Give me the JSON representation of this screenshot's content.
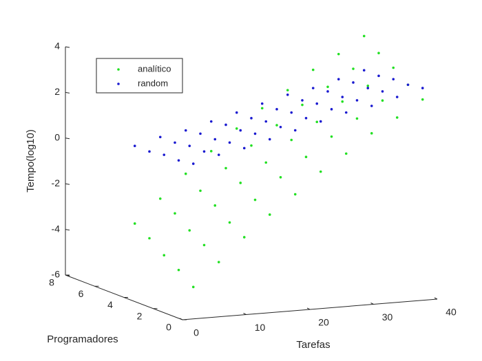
{
  "chart_data": {
    "type": "scatter3d",
    "xlabel": "Tarefas",
    "ylabel": "Programadores",
    "zlabel": "Tempo(log10)",
    "xlim": [
      0,
      40
    ],
    "xticks": [
      0,
      10,
      20,
      30,
      40
    ],
    "ylim": [
      0,
      8
    ],
    "yticks": [
      0,
      2,
      4,
      6,
      8
    ],
    "zlim": [
      -6,
      4
    ],
    "zticks": [
      -6,
      -4,
      -2,
      0,
      2,
      4
    ],
    "legend": "upper-left",
    "x": [
      4,
      8,
      12,
      16,
      20,
      24,
      28,
      32,
      36,
      40,
      4,
      8,
      12,
      16,
      20,
      24,
      28,
      32,
      36,
      40,
      4,
      8,
      12,
      16,
      20,
      24,
      28,
      32,
      36,
      40,
      4,
      8,
      12,
      16,
      20,
      24,
      28,
      32,
      36,
      40,
      4,
      8,
      12,
      16,
      20,
      24,
      28,
      32,
      36,
      40
    ],
    "y": [
      1,
      1,
      1,
      1,
      1,
      1,
      1,
      1,
      1,
      1,
      2,
      2,
      2,
      2,
      2,
      2,
      2,
      2,
      2,
      2,
      3,
      3,
      3,
      3,
      3,
      3,
      3,
      3,
      3,
      3,
      4,
      4,
      4,
      4,
      4,
      4,
      4,
      4,
      4,
      4,
      5,
      5,
      5,
      5,
      5,
      5,
      5,
      5,
      5,
      5
    ],
    "series": [
      {
        "name": "analítico",
        "color": "#22e022",
        "values": [
          -4.9,
          -3.9,
          -2.9,
          -2.0,
          -1.2,
          -0.3,
          0.4,
          1.2,
          1.8,
          2.5,
          -4.4,
          -3.4,
          -2.5,
          -1.6,
          -0.7,
          0.1,
          0.9,
          1.6,
          2.3,
          2.9,
          -4.0,
          -3.0,
          -2.0,
          -1.1,
          -0.3,
          0.6,
          1.3,
          2.1,
          2.7,
          3.4,
          -3.5,
          -2.5,
          -1.6,
          -0.7,
          0.2,
          1.0,
          1.8,
          2.5,
          3.2,
          3.8,
          -3.1,
          -2.1,
          -1.1,
          -0.2,
          0.7,
          1.5,
          2.2,
          3.0,
          3.6,
          4.3
        ]
      },
      {
        "name": "random",
        "color": "#1a1ad0",
        "values": [
          0.5,
          0.8,
          1.0,
          1.3,
          1.6,
          1.9,
          2.2,
          2.4,
          2.7,
          3.0,
          0.4,
          0.7,
          1.0,
          1.3,
          1.5,
          1.8,
          2.1,
          2.4,
          2.7,
          2.9,
          0.4,
          0.7,
          0.9,
          1.2,
          1.5,
          1.8,
          2.1,
          2.3,
          2.6,
          2.9,
          0.3,
          0.6,
          0.9,
          1.2,
          1.4,
          1.7,
          2.0,
          2.3,
          2.6,
          2.8,
          0.3,
          0.6,
          0.8,
          1.1,
          1.4,
          1.7,
          2.0,
          2.2,
          2.5,
          2.8
        ]
      }
    ]
  }
}
